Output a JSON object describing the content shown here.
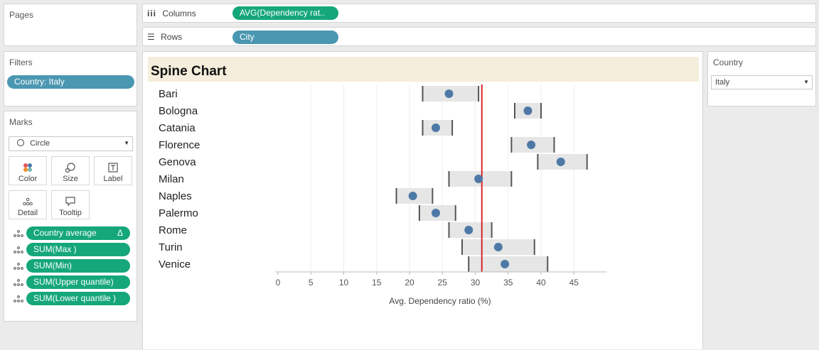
{
  "pages": {
    "title": "Pages"
  },
  "shelves": {
    "columns_label": "Columns",
    "columns_pill": "AVG(Dependency rat..",
    "rows_label": "Rows",
    "rows_pill": "City"
  },
  "filters": {
    "title": "Filters",
    "pill": "Country: Italy"
  },
  "marks": {
    "title": "Marks",
    "type": "Circle",
    "buttons": [
      {
        "label": "Color",
        "icon": "color-icon"
      },
      {
        "label": "Size",
        "icon": "size-icon"
      },
      {
        "label": "Label",
        "icon": "label-icon"
      },
      {
        "label": "Detail",
        "icon": "detail-icon"
      },
      {
        "label": "Tooltip",
        "icon": "tooltip-icon"
      }
    ],
    "fields": [
      {
        "label": "Country average",
        "delta": "Δ"
      },
      {
        "label": "SUM(Max )"
      },
      {
        "label": "SUM(Min)"
      },
      {
        "label": "SUM(Upper quantile)"
      },
      {
        "label": "SUM(Lower quantile )"
      }
    ]
  },
  "country_filter": {
    "title": "Country",
    "value": "Italy"
  },
  "colors": {
    "dot": "#4e79a7",
    "band": "#e6e6e6",
    "whisker": "#555555",
    "reference_line": "#d62728",
    "title_bg": "#f5eedc",
    "pill_green": "#15a77a",
    "pill_blue": "#4a97b1"
  },
  "chart_data": {
    "type": "scatter",
    "title": "Spine Chart",
    "xlabel": "Avg. Dependency ratio (%)",
    "xlim": [
      0,
      50
    ],
    "x_ticks": [
      0,
      5,
      10,
      15,
      20,
      25,
      30,
      35,
      40,
      45
    ],
    "country_average": 31,
    "categories": [
      "Bari",
      "Bologna",
      "Catania",
      "Florence",
      "Genova",
      "Milan",
      "Naples",
      "Palermo",
      "Rome",
      "Turin",
      "Venice"
    ],
    "series": [
      {
        "name": "AVG(Dependency rat..",
        "values": [
          26,
          38,
          24,
          38.5,
          43,
          30.5,
          20.5,
          24,
          29,
          33.5,
          34.5
        ]
      },
      {
        "name": "SUM(Min)",
        "values": [
          22,
          36,
          22,
          35.5,
          39.5,
          26,
          18,
          21.5,
          26,
          28,
          29
        ]
      },
      {
        "name": "SUM(Max )",
        "values": [
          30.5,
          40,
          26.5,
          42,
          47,
          35.5,
          23.5,
          27,
          32.5,
          39,
          41
        ]
      }
    ]
  }
}
